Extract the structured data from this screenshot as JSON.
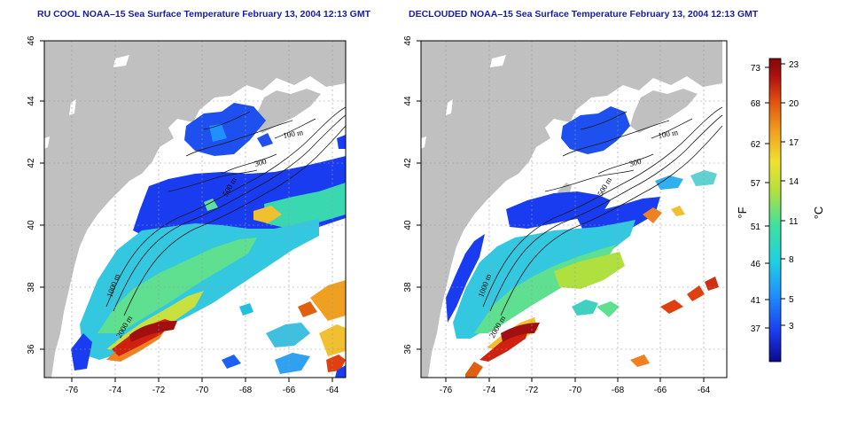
{
  "maps": [
    {
      "title": "RU COOL NOAA–15 Sea Surface Temperature February 13, 2004 12:13 GMT",
      "x_ticks": [
        "-76",
        "-74",
        "-72",
        "-70",
        "-68",
        "-66",
        "-64"
      ],
      "y_ticks": [
        "36",
        "38",
        "40",
        "42",
        "44",
        "46"
      ],
      "contour_labels": [
        "100 m",
        "300",
        "500 m",
        "1000 m",
        "2000 m"
      ]
    },
    {
      "title": "DECLOUDED NOAA–15 Sea Surface Temperature February 13, 2004 12:13 GMT",
      "x_ticks": [
        "-76",
        "-74",
        "-72",
        "-70",
        "-68",
        "-66",
        "-64"
      ],
      "y_ticks": [
        "36",
        "38",
        "40",
        "42",
        "44",
        "46"
      ],
      "contour_labels": [
        "100 m",
        "300",
        "500 m",
        "1000 m",
        "2000 m"
      ]
    }
  ],
  "colorbar": {
    "fahrenheit_ticks": [
      "73",
      "68",
      "62",
      "57",
      "51",
      "46",
      "41",
      "37"
    ],
    "celsius_ticks": [
      "23",
      "20",
      "17",
      "14",
      "11",
      "8",
      "5",
      "3"
    ],
    "fahrenheit_unit": "°F",
    "celsius_unit": "°C",
    "colors": [
      "#0a0a8c",
      "#1a3cf0",
      "#1e90ff",
      "#20d0e0",
      "#40e0a0",
      "#b0e040",
      "#f0e030",
      "#f0a020",
      "#e05010",
      "#b01010",
      "#800808"
    ]
  },
  "colors": {
    "land": "#c0c0c0",
    "title": "#1a1aa6"
  }
}
